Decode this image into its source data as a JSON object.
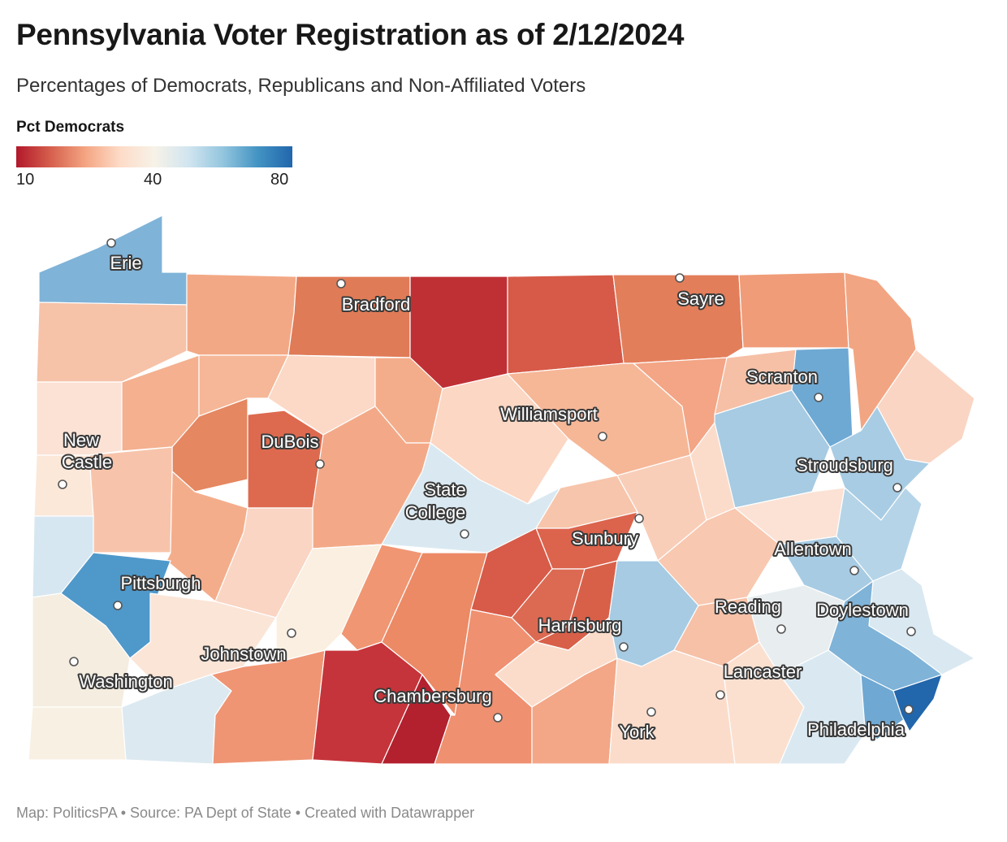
{
  "title": "Pennsylvania Voter Registration as of 2/12/2024",
  "subtitle": "Percentages of Democrats, Republicans and Non-Affiliated Voters",
  "legend": {
    "title": "Pct Democrats",
    "min_label": "10",
    "mid_label": "40",
    "max_label": "80",
    "colors": [
      "#b2182b",
      "#d6604d",
      "#f4a582",
      "#fddbc7",
      "#f7f2e8",
      "#d1e5f0",
      "#92c5de",
      "#4393c3",
      "#2166ac"
    ]
  },
  "cities": [
    {
      "name": "Erie",
      "label": "Erie"
    },
    {
      "name": "Bradford",
      "label": "Bradford"
    },
    {
      "name": "Sayre",
      "label": "Sayre"
    },
    {
      "name": "Scranton",
      "label": "Scranton"
    },
    {
      "name": "Williamsport",
      "label": "Williamsport"
    },
    {
      "name": "DuBois",
      "label": "DuBois"
    },
    {
      "name": "New Castle",
      "label": "New Castle",
      "line1": "New",
      "line2": "Castle"
    },
    {
      "name": "Stroudsburg",
      "label": "Stroudsburg"
    },
    {
      "name": "State College",
      "label": "State College",
      "line1": "State",
      "line2": "College"
    },
    {
      "name": "Sunbury",
      "label": "Sunbury"
    },
    {
      "name": "Allentown",
      "label": "Allentown"
    },
    {
      "name": "Pittsburgh",
      "label": "Pittsburgh"
    },
    {
      "name": "Reading",
      "label": "Reading"
    },
    {
      "name": "Doylestown",
      "label": "Doylestown"
    },
    {
      "name": "Harrisburg",
      "label": "Harrisburg"
    },
    {
      "name": "Johnstown",
      "label": "Johnstown"
    },
    {
      "name": "Washington",
      "label": "Washington"
    },
    {
      "name": "Lancaster",
      "label": "Lancaster"
    },
    {
      "name": "Chambersburg",
      "label": "Chambersburg"
    },
    {
      "name": "Philadelphia",
      "label": "Philadelphia"
    },
    {
      "name": "York",
      "label": "York"
    }
  ],
  "footer": "Map: PoliticsPA • Source: PA Dept of State • Created with Datawrapper"
}
